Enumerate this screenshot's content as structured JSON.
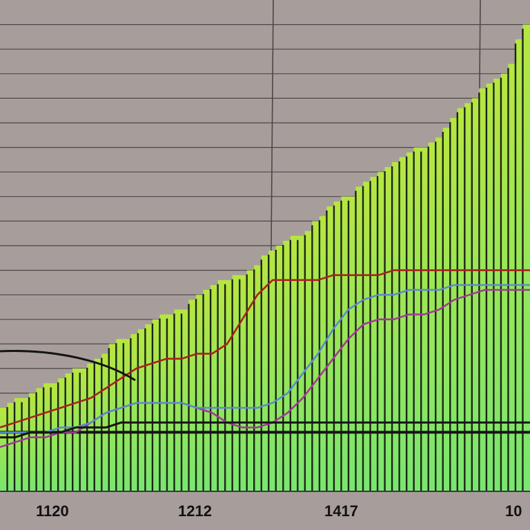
{
  "chart_data": {
    "type": "bar",
    "title": "",
    "xlabel": "",
    "ylabel": "",
    "x_tick_labels": [
      "1120",
      "1212",
      "1417",
      "10"
    ],
    "ylim": [
      0,
      100
    ],
    "grid": true,
    "legend": "none",
    "bars": [
      17,
      18,
      19,
      19,
      20,
      21,
      22,
      22,
      23,
      24,
      25,
      25,
      26,
      27,
      28,
      30,
      31,
      31,
      32,
      33,
      34,
      35,
      36,
      36,
      37,
      37,
      39,
      40,
      41,
      42,
      43,
      43,
      44,
      44,
      45,
      46,
      48,
      49,
      50,
      51,
      52,
      52,
      53,
      55,
      56,
      58,
      59,
      60,
      60,
      62,
      63,
      64,
      65,
      66,
      67,
      68,
      69,
      70,
      70,
      71,
      72,
      74,
      76,
      78,
      79,
      80,
      82,
      83,
      84,
      85,
      87,
      92,
      95
    ],
    "series": [
      {
        "values": [
          9,
          10,
          11,
          11,
          12,
          12,
          14,
          16,
          17,
          18,
          18,
          18,
          18,
          17,
          16,
          14,
          13,
          13,
          14,
          16,
          19,
          23,
          27,
          31,
          34,
          35,
          35,
          36,
          36,
          37,
          39,
          40,
          41,
          41,
          41,
          41
        ]
      },
      {
        "values": [
          12,
          12,
          12,
          12,
          13,
          13,
          14,
          16,
          17,
          18,
          18,
          18,
          18,
          17,
          17,
          17,
          17,
          17,
          18,
          20,
          24,
          28,
          33,
          37,
          39,
          40,
          40,
          41,
          41,
          41,
          42,
          42,
          42,
          42,
          42,
          42
        ]
      },
      {
        "values": [
          13,
          14,
          15,
          16,
          17,
          18,
          19,
          21,
          23,
          25,
          26,
          27,
          27,
          28,
          28,
          30,
          35,
          40,
          43,
          43,
          43,
          43,
          44,
          44,
          44,
          44,
          45,
          45,
          45,
          45,
          45,
          45,
          45,
          45,
          45,
          45
        ]
      },
      {
        "values": [
          11,
          11,
          12,
          12,
          12,
          13,
          13,
          13,
          14,
          14,
          14,
          14,
          14,
          14,
          14,
          14,
          14,
          14,
          14,
          14,
          14,
          14,
          14,
          14,
          14,
          14,
          14,
          14,
          14,
          14,
          14,
          14,
          14,
          14,
          14,
          14
        ]
      }
    ],
    "colors": {
      "background": "#a79e9c",
      "gridline": "#4a4646",
      "bar_top": "#b6e640",
      "bar_bottom": "#78e66f",
      "bar_divider": "#1d2418",
      "series": [
        "#a03a96",
        "#5a8ad0",
        "#a8201e",
        "#141414"
      ]
    }
  }
}
